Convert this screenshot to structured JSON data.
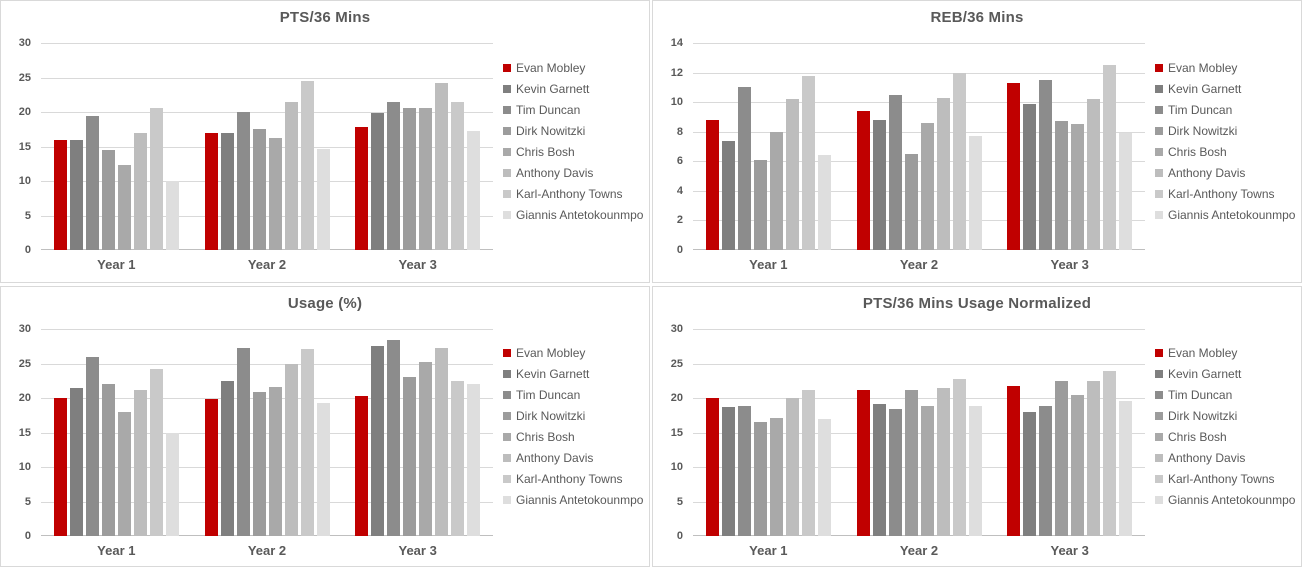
{
  "players": [
    "Evan Mobley",
    "Kevin Garnett",
    "Tim Duncan",
    "Dirk Nowitzki",
    "Chris Bosh",
    "Anthony Davis",
    "Karl-Anthony Towns",
    "Giannis Antetokounmpo"
  ],
  "colors": {
    "accent_red": "#C00000",
    "series": [
      "#C00000",
      "#7F7F7F",
      "#8C8C8C",
      "#9C9C9C",
      "#A9A9A9",
      "#BDBDBD",
      "#C9C9C9",
      "#DEDEDE"
    ],
    "text": "#595959",
    "gridline": "#D9D9D9",
    "axisline": "#BFBFBF"
  },
  "chart_data": [
    {
      "type": "bar",
      "title": "PTS/36 Mins",
      "categories": [
        "Year 1",
        "Year 2",
        "Year 3"
      ],
      "ylim": [
        0,
        30
      ],
      "ytick_step": 5,
      "grid": true,
      "legend_position": "right",
      "series": [
        {
          "name": "Evan Mobley",
          "values": [
            16.0,
            16.9,
            17.8
          ]
        },
        {
          "name": "Kevin Garnett",
          "values": [
            15.9,
            17.0,
            19.8
          ]
        },
        {
          "name": "Tim Duncan",
          "values": [
            19.4,
            20.0,
            21.5
          ]
        },
        {
          "name": "Dirk Nowitzki",
          "values": [
            14.5,
            17.6,
            20.6
          ]
        },
        {
          "name": "Chris Bosh",
          "values": [
            12.3,
            16.3,
            20.6
          ]
        },
        {
          "name": "Anthony Davis",
          "values": [
            16.9,
            21.4,
            24.2
          ]
        },
        {
          "name": "Karl-Anthony Towns",
          "values": [
            20.6,
            24.5,
            21.4
          ]
        },
        {
          "name": "Giannis Antetokounmpo",
          "values": [
            10.0,
            14.6,
            17.2
          ]
        }
      ]
    },
    {
      "type": "bar",
      "title": "REB/36 Mins",
      "categories": [
        "Year 1",
        "Year 2",
        "Year 3"
      ],
      "ylim": [
        0,
        14
      ],
      "ytick_step": 2,
      "grid": true,
      "legend_position": "right",
      "series": [
        {
          "name": "Evan Mobley",
          "values": [
            8.8,
            9.4,
            11.3
          ]
        },
        {
          "name": "Kevin Garnett",
          "values": [
            7.4,
            8.8,
            9.9
          ]
        },
        {
          "name": "Tim Duncan",
          "values": [
            11.0,
            10.5,
            11.5
          ]
        },
        {
          "name": "Dirk Nowitzki",
          "values": [
            6.1,
            6.5,
            8.7
          ]
        },
        {
          "name": "Chris Bosh",
          "values": [
            8.0,
            8.6,
            8.5
          ]
        },
        {
          "name": "Anthony Davis",
          "values": [
            10.2,
            10.3,
            10.2
          ]
        },
        {
          "name": "Karl-Anthony Towns",
          "values": [
            11.8,
            12.0,
            12.5
          ]
        },
        {
          "name": "Giannis Antetokounmpo",
          "values": [
            6.4,
            7.7,
            7.9
          ]
        }
      ]
    },
    {
      "type": "bar",
      "title": "Usage (%)",
      "categories": [
        "Year 1",
        "Year 2",
        "Year 3"
      ],
      "ylim": [
        0,
        30
      ],
      "ytick_step": 5,
      "grid": true,
      "legend_position": "right",
      "series": [
        {
          "name": "Evan Mobley",
          "values": [
            20.0,
            19.9,
            20.3
          ]
        },
        {
          "name": "Kevin Garnett",
          "values": [
            21.4,
            22.4,
            27.6
          ]
        },
        {
          "name": "Tim Duncan",
          "values": [
            26.0,
            27.3,
            28.4
          ]
        },
        {
          "name": "Dirk Nowitzki",
          "values": [
            22.0,
            20.8,
            23.1
          ]
        },
        {
          "name": "Chris Bosh",
          "values": [
            18.0,
            21.6,
            25.2
          ]
        },
        {
          "name": "Anthony Davis",
          "values": [
            21.2,
            25.0,
            27.3
          ]
        },
        {
          "name": "Karl-Anthony Towns",
          "values": [
            24.2,
            27.1,
            22.5
          ]
        },
        {
          "name": "Giannis Antetokounmpo",
          "values": [
            15.0,
            19.3,
            22.1
          ]
        }
      ]
    },
    {
      "type": "bar",
      "title": "PTS/36 Mins Usage Normalized",
      "categories": [
        "Year 1",
        "Year 2",
        "Year 3"
      ],
      "ylim": [
        0,
        30
      ],
      "ytick_step": 5,
      "grid": true,
      "legend_position": "right",
      "series": [
        {
          "name": "Evan Mobley",
          "values": [
            20.0,
            21.2,
            21.7
          ]
        },
        {
          "name": "Kevin Garnett",
          "values": [
            18.7,
            19.1,
            18.0
          ]
        },
        {
          "name": "Tim Duncan",
          "values": [
            18.8,
            18.4,
            18.9
          ]
        },
        {
          "name": "Dirk Nowitzki",
          "values": [
            16.5,
            21.2,
            22.4
          ]
        },
        {
          "name": "Chris Bosh",
          "values": [
            17.1,
            18.8,
            20.5
          ]
        },
        {
          "name": "Anthony Davis",
          "values": [
            20.0,
            21.4,
            22.4
          ]
        },
        {
          "name": "Karl-Anthony Towns",
          "values": [
            21.2,
            22.7,
            23.9
          ]
        },
        {
          "name": "Giannis Antetokounmpo",
          "values": [
            16.9,
            18.9,
            19.5
          ]
        }
      ]
    }
  ]
}
